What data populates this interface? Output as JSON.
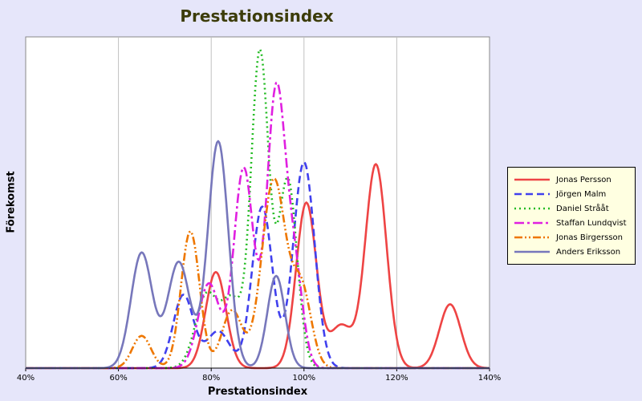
{
  "chart_data": {
    "type": "line",
    "title": "Prestationsindex",
    "xlabel": "Prestationsindex",
    "ylabel": "Förekomst",
    "xlim": [
      40,
      140
    ],
    "ylim": [
      0,
      4.1
    ],
    "x_ticks": [
      "40%",
      "60%",
      "80%",
      "100%",
      "120%",
      "140%"
    ],
    "grid": "vertical",
    "legend_position": "right",
    "series": [
      {
        "name": "Jonas Persson",
        "color": "#ee4444",
        "dash": "solid",
        "peaks": [
          [
            81,
            1.25,
            2.2
          ],
          [
            100.5,
            2.15,
            2.2
          ],
          [
            108,
            0.55,
            2.4
          ],
          [
            115.5,
            2.65,
            2.3
          ],
          [
            131.5,
            0.83,
            2.3
          ]
        ]
      },
      {
        "name": "Jörgen Malm",
        "color": "#4040ee",
        "dash": "dashed",
        "peaks": [
          [
            74,
            0.95,
            2.2
          ],
          [
            81.5,
            0.48,
            2.5
          ],
          [
            91,
            2.1,
            2.2
          ],
          [
            100,
            2.68,
            2.3
          ]
        ]
      },
      {
        "name": "Daniel Strååt",
        "color": "#22bb22",
        "dash": "dotted",
        "peaks": [
          [
            79,
            0.95,
            2.4
          ],
          [
            84.5,
            0.85,
            2.2
          ],
          [
            90.5,
            4.1,
            1.9
          ],
          [
            96.5,
            2.45,
            2.0
          ]
        ]
      },
      {
        "name": "Staffan Lundqvist",
        "color": "#e020e0",
        "dash": "dashdot",
        "peaks": [
          [
            79.5,
            1.1,
            2.3
          ],
          [
            87,
            2.6,
            2.1
          ],
          [
            94,
            3.6,
            2.0
          ],
          [
            98,
            1.2,
            1.8
          ]
        ]
      },
      {
        "name": "Jonas Birgersson",
        "color": "#ee7700",
        "dash": "dashdotdot",
        "peaks": [
          [
            65,
            0.42,
            2.0
          ],
          [
            75.5,
            1.78,
            2.0
          ],
          [
            84.5,
            0.75,
            2.2
          ],
          [
            93.5,
            2.45,
            2.6
          ],
          [
            99.5,
            1.0,
            2.1
          ]
        ]
      },
      {
        "name": "Anders Eriksson",
        "color": "#7777bb",
        "dash": "solid",
        "peaks": [
          [
            65,
            1.5,
            2.3
          ],
          [
            73,
            1.38,
            2.4
          ],
          [
            81.5,
            2.95,
            2.2
          ],
          [
            94,
            1.2,
            1.9
          ]
        ]
      }
    ]
  }
}
